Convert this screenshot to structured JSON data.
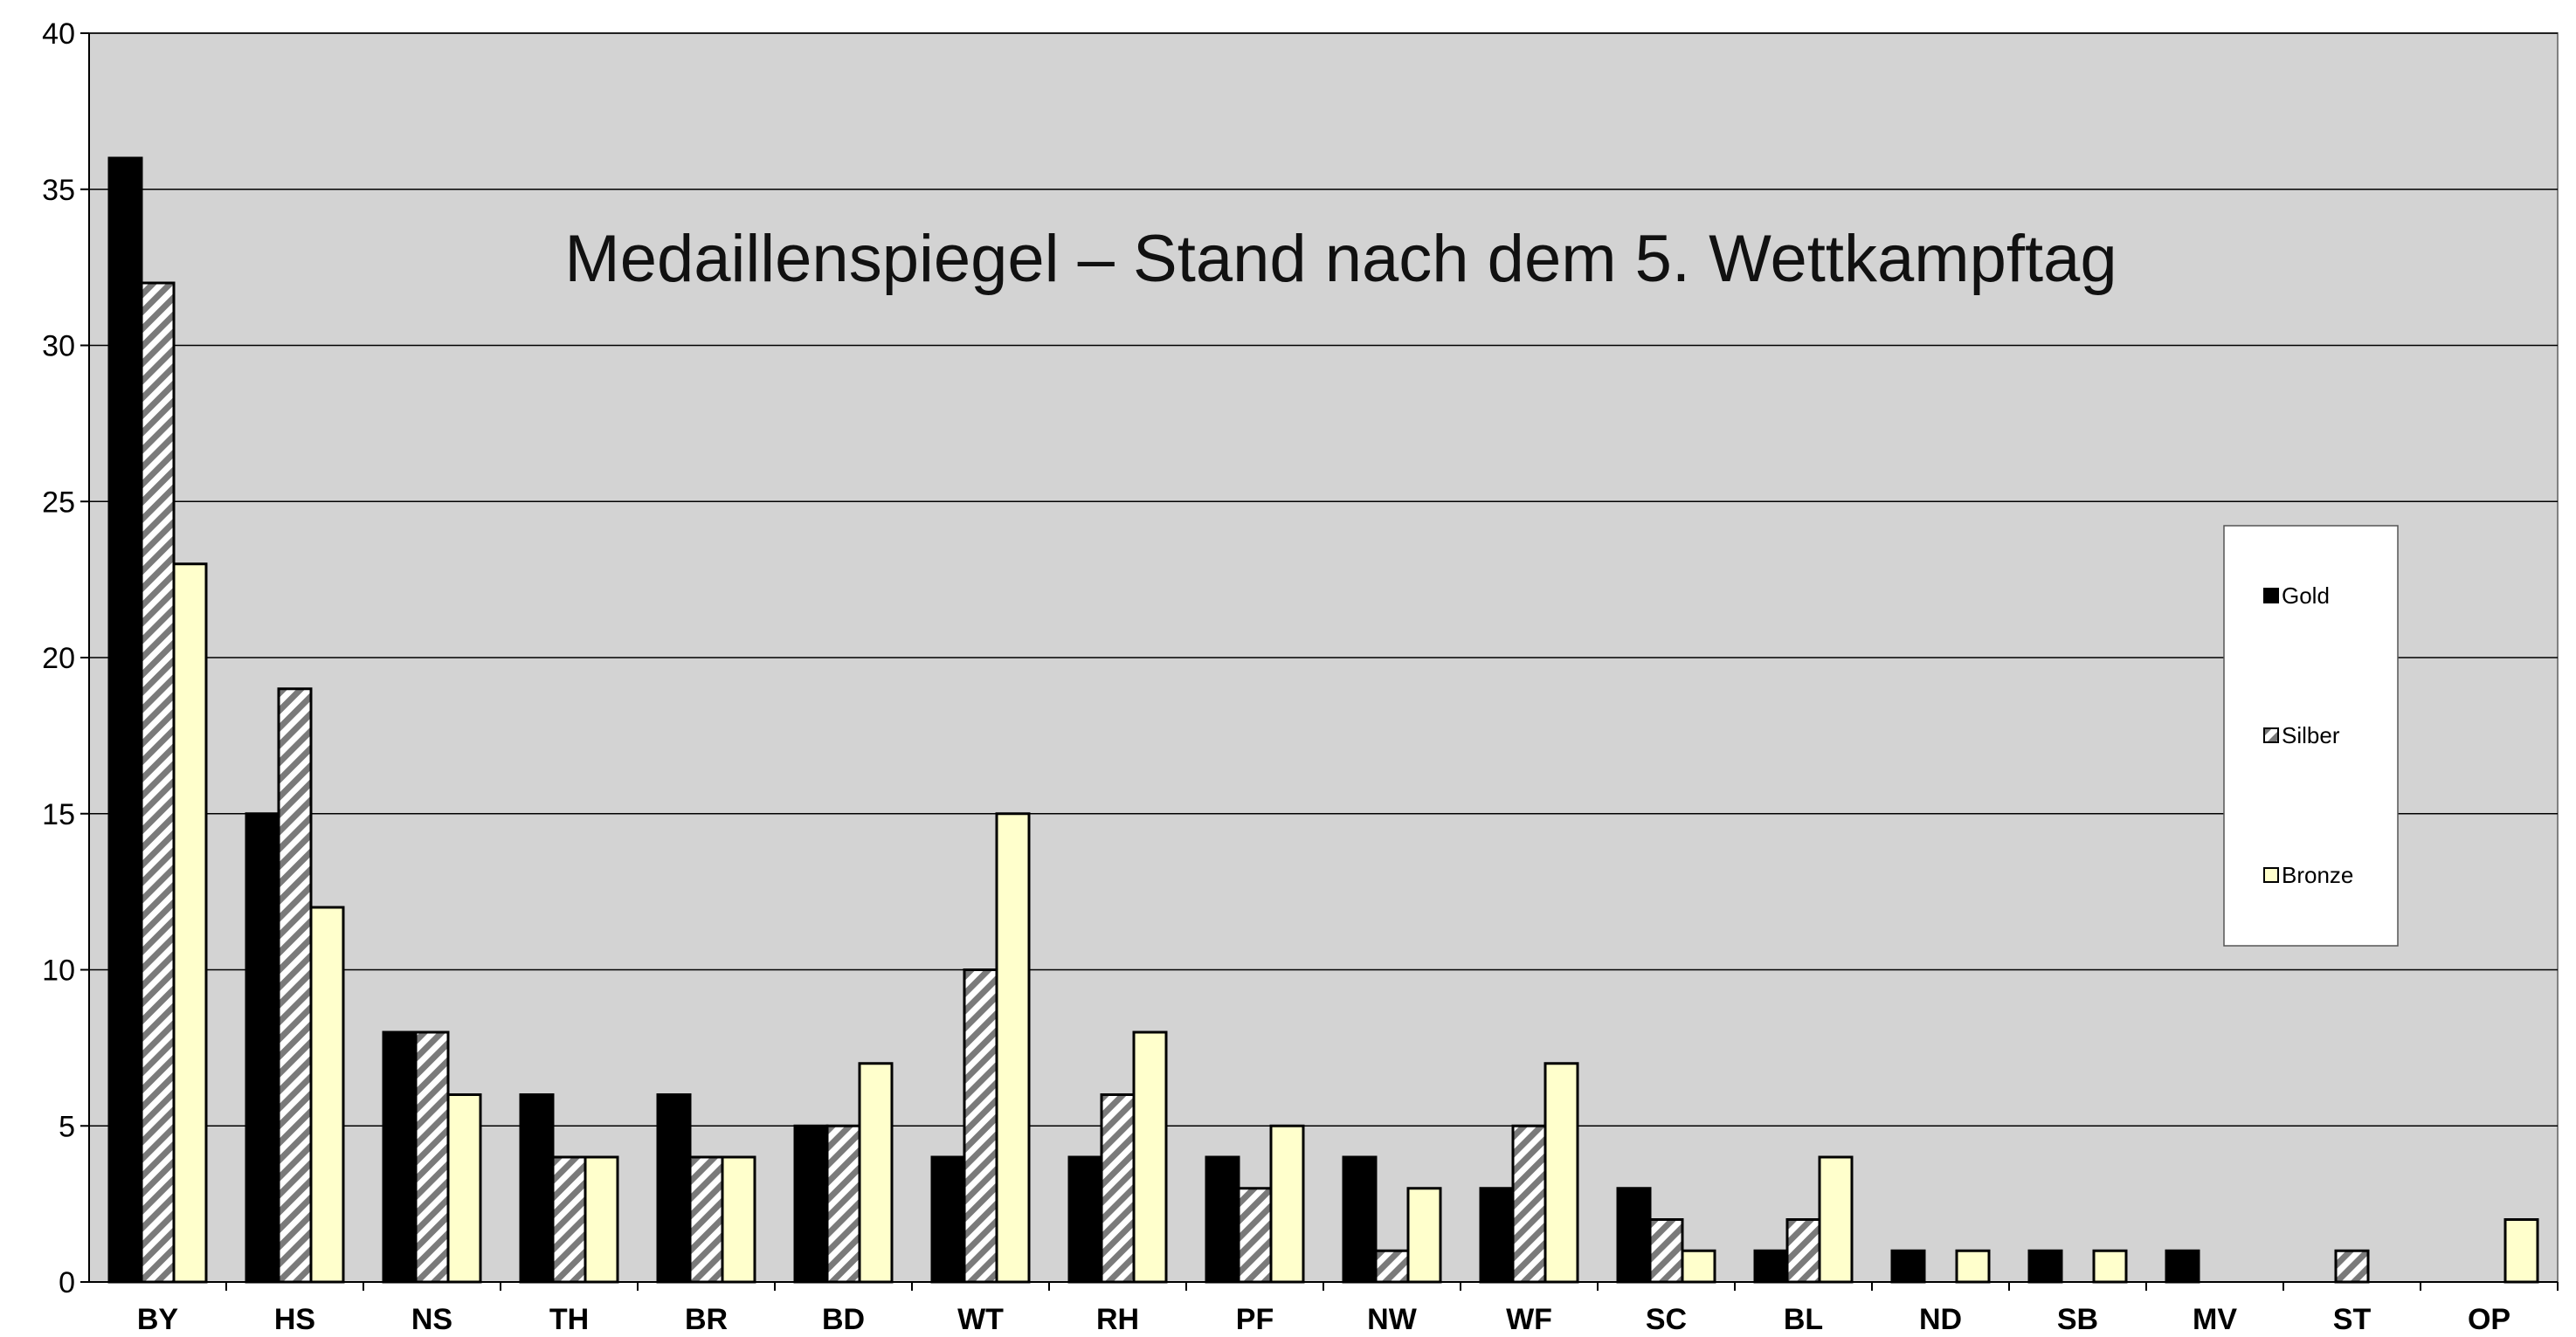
{
  "chart_data": {
    "type": "bar",
    "title": "Medaillenspiegel – Stand nach dem 5. Wettkampftag",
    "xlabel": "",
    "ylabel": "",
    "ylim": [
      0,
      40
    ],
    "yticks": [
      0,
      5,
      10,
      15,
      20,
      25,
      30,
      35,
      40
    ],
    "grid": true,
    "legend_position": "right",
    "categories": [
      "BY",
      "HS",
      "NS",
      "TH",
      "BR",
      "BD",
      "WT",
      "RH",
      "PF",
      "NW",
      "WF",
      "SC",
      "BL",
      "ND",
      "SB",
      "MV",
      "ST",
      "OP"
    ],
    "series": [
      {
        "name": "Gold",
        "color": "#000000",
        "pattern": "solid",
        "values": [
          36,
          15,
          8,
          6,
          6,
          5,
          4,
          4,
          4,
          4,
          3,
          3,
          1,
          1,
          1,
          1,
          0,
          0
        ]
      },
      {
        "name": "Silber",
        "color": "#808080",
        "pattern": "diagonal-hatch",
        "values": [
          32,
          19,
          8,
          4,
          4,
          5,
          10,
          6,
          3,
          1,
          5,
          2,
          2,
          0,
          0,
          0,
          1,
          0
        ]
      },
      {
        "name": "Bronze",
        "color": "#ffffcc",
        "pattern": "solid",
        "values": [
          23,
          12,
          6,
          4,
          4,
          7,
          15,
          8,
          5,
          3,
          7,
          1,
          4,
          1,
          1,
          0,
          0,
          2
        ]
      }
    ],
    "plot_background": "#d3d3d3"
  }
}
